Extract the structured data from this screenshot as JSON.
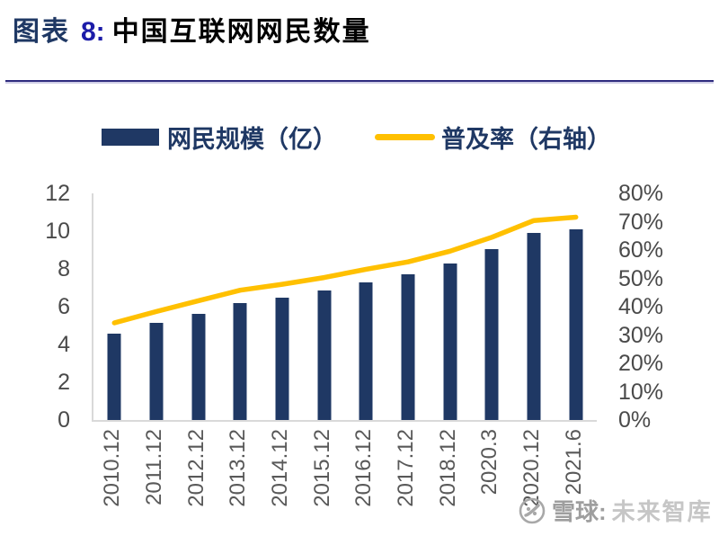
{
  "title": {
    "prefix": "图表",
    "number": "8:",
    "text": "中国互联网网民数量"
  },
  "legend": {
    "items": [
      {
        "label": "网民规模（亿）",
        "marker": "bar-swatch",
        "color": "#1F3864"
      },
      {
        "label": "普及率（右轴）",
        "marker": "line-swatch",
        "color": "#FFC000"
      }
    ]
  },
  "watermark": {
    "brand": "雪球:",
    "name": "未来智库"
  },
  "colors": {
    "bar_navy": "#1F3864",
    "line_yellow": "#FFC000",
    "title_navy": "#1F3864",
    "title_number_blue": "#1C1CA8",
    "divider_indigo": "#2E2B7E",
    "axis_line_gray": "#D9D9D9",
    "tick_text_gray": "#4A4A4A",
    "xlabel_text_gray": "#595959",
    "watermark_gray": "#9E9E9E",
    "watermark_light_gray": "#C6C6C6"
  },
  "chart_data": {
    "type": "bar",
    "subtype": "combo-bar-line",
    "title": "中国互联网网民数量",
    "categories": [
      "2010.12",
      "2011.12",
      "2012.12",
      "2013.12",
      "2014.12",
      "2015.12",
      "2016.12",
      "2017.12",
      "2018.12",
      "2020.3",
      "2020.12",
      "2021.6"
    ],
    "series": [
      {
        "name": "网民规模（亿）",
        "type": "bar",
        "axis": "left",
        "color": "#1F3864",
        "values": [
          4.57,
          5.13,
          5.64,
          6.18,
          6.49,
          6.88,
          7.31,
          7.72,
          8.29,
          9.04,
          9.89,
          10.11
        ]
      },
      {
        "name": "普及率（右轴）",
        "type": "line",
        "axis": "right",
        "color": "#FFC000",
        "values": [
          34.3,
          38.3,
          42.1,
          45.8,
          47.9,
          50.3,
          53.2,
          55.8,
          59.6,
          64.5,
          70.4,
          71.6
        ]
      }
    ],
    "left_axis": {
      "min": 0,
      "max": 12,
      "step": 2,
      "ticks": [
        "0",
        "2",
        "4",
        "6",
        "8",
        "10",
        "12"
      ]
    },
    "right_axis": {
      "min": 0,
      "max": 80,
      "step": 10,
      "unit": "%",
      "ticks": [
        "0%",
        "10%",
        "20%",
        "30%",
        "40%",
        "50%",
        "60%",
        "70%",
        "80%"
      ]
    },
    "legend_position": "top",
    "grid": false
  }
}
